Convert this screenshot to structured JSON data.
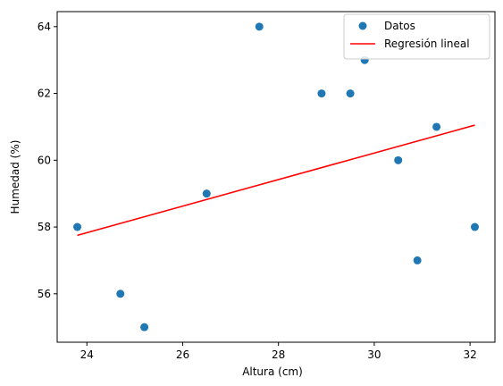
{
  "chart_data": {
    "type": "scatter",
    "xlabel": "Altura (cm)",
    "ylabel": "Humedad (%)",
    "xlim": [
      23.38,
      32.52
    ],
    "ylim": [
      54.55,
      64.45
    ],
    "xticks": [
      "24",
      "26",
      "28",
      "30",
      "32"
    ],
    "yticks": [
      "56",
      "58",
      "60",
      "62",
      "64"
    ],
    "grid": false,
    "legend_position": "top-right",
    "series": [
      {
        "name": "Datos",
        "kind": "scatter",
        "color": "#1f77b4",
        "points": [
          {
            "x": 23.8,
            "y": 58
          },
          {
            "x": 24.7,
            "y": 56
          },
          {
            "x": 25.2,
            "y": 55
          },
          {
            "x": 26.5,
            "y": 59
          },
          {
            "x": 27.6,
            "y": 64
          },
          {
            "x": 28.9,
            "y": 62
          },
          {
            "x": 29.5,
            "y": 62
          },
          {
            "x": 29.8,
            "y": 63
          },
          {
            "x": 30.5,
            "y": 60
          },
          {
            "x": 30.9,
            "y": 57
          },
          {
            "x": 31.3,
            "y": 61
          },
          {
            "x": 32.1,
            "y": 58
          }
        ]
      },
      {
        "name": "Regresión lineal",
        "kind": "line",
        "color": "#ff0000",
        "points": [
          {
            "x": 23.8,
            "y": 57.75
          },
          {
            "x": 32.1,
            "y": 61.05
          }
        ]
      }
    ]
  }
}
